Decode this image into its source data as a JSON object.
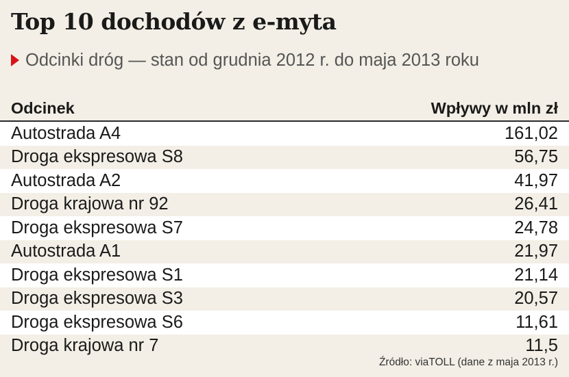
{
  "title": "Top 10 dochodów z e-myta",
  "subtitle": "Odcinki dróg — stan od grudnia 2012 r. do maja 2013 roku",
  "source": "Źródło: viaTOLL (dane z maja 2013 r.)",
  "colors": {
    "accent": "#d7141a",
    "background": "#f3efe6",
    "row_alt": "#ffffff"
  },
  "chart_data": {
    "type": "table",
    "title": "Top 10 dochodów z e-myta",
    "subtitle": "Odcinki dróg — stan od grudnia 2012 r. do maja 2013 roku",
    "columns": [
      "Odcinek",
      "Wpływy w mln zł"
    ],
    "rows": [
      [
        "Autostrada A4",
        "161,02"
      ],
      [
        "Droga ekspresowa S8",
        "56,75"
      ],
      [
        "Autostrada A2",
        "41,97"
      ],
      [
        "Droga krajowa nr 92",
        "26,41"
      ],
      [
        "Droga ekspresowa S7",
        "24,78"
      ],
      [
        "Autostrada A1",
        "21,97"
      ],
      [
        "Droga ekspresowa S1",
        "21,14"
      ],
      [
        "Droga ekspresowa S3",
        "20,57"
      ],
      [
        "Droga ekspresowa S6",
        "11,61"
      ],
      [
        "Droga krajowa nr 7",
        "11,5"
      ]
    ],
    "values": [
      161.02,
      56.75,
      41.97,
      26.41,
      24.78,
      21.97,
      21.14,
      20.57,
      11.61,
      11.5
    ]
  }
}
